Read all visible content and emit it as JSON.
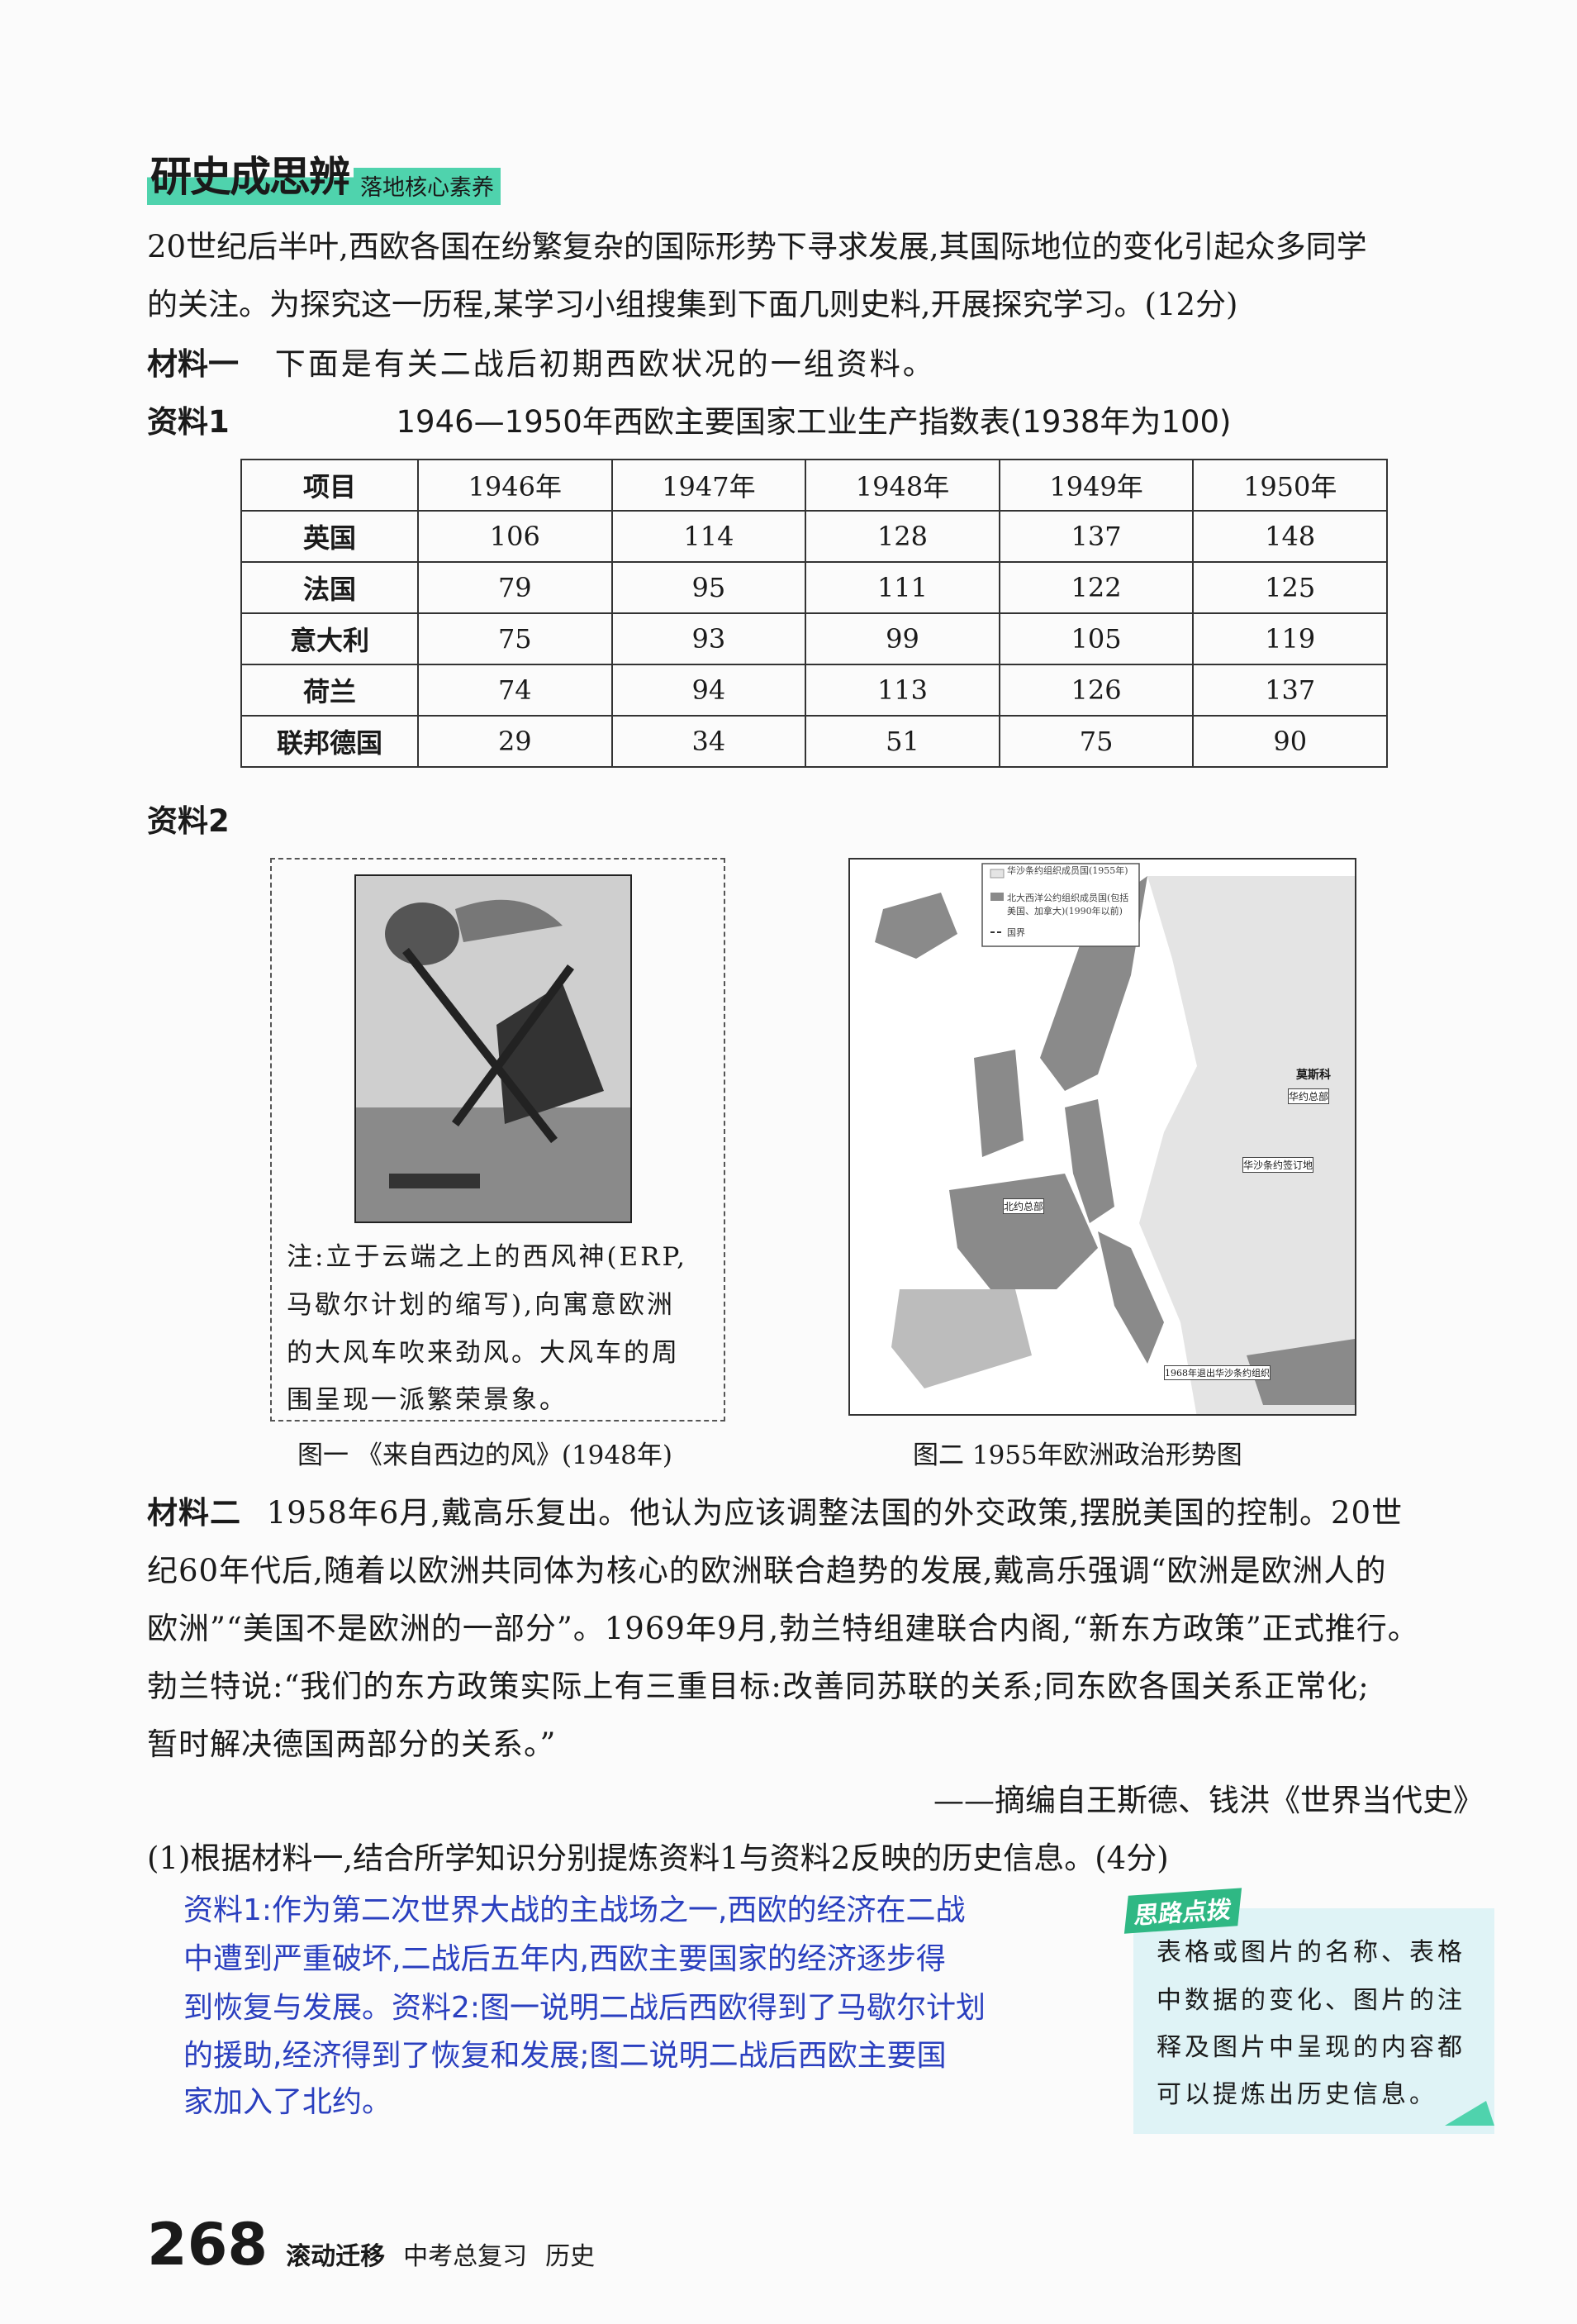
{
  "header": {
    "title": "研史成思辨",
    "subtitle": "落地核心素养"
  },
  "intro": [
    "20世纪后半叶,西欧各国在纷繁复杂的国际形势下寻求发展,其国际地位的变化引起众多同学",
    "的关注。为探究这一历程,某学习小组搜集到下面几则史料,开展探究学习。(12分)"
  ],
  "material1": {
    "label": "材料一",
    "text": "下面是有关二战后初期西欧状况的一组资料。"
  },
  "source1": {
    "label": "资料1",
    "title": "1946—1950年西欧主要国家工业生产指数表(1938年为100)"
  },
  "table": {
    "headers": [
      "项目",
      "1946年",
      "1947年",
      "1948年",
      "1949年",
      "1950年"
    ],
    "rows": [
      [
        "英国",
        "106",
        "114",
        "128",
        "137",
        "148"
      ],
      [
        "法国",
        "79",
        "95",
        "111",
        "122",
        "125"
      ],
      [
        "意大利",
        "75",
        "93",
        "99",
        "105",
        "119"
      ],
      [
        "荷兰",
        "74",
        "94",
        "113",
        "126",
        "137"
      ],
      [
        "联邦德国",
        "29",
        "34",
        "51",
        "75",
        "90"
      ]
    ]
  },
  "source2": {
    "label": "资料2"
  },
  "figure1": {
    "note": [
      "注:立于云端之上的西风神(ERP,",
      "马歇尔计划的缩写),向寓意欧洲",
      "的大风车吹来劲风。大风车的周",
      "围呈现一派繁荣景象。"
    ],
    "caption": "图一 《来自西边的风》(1948年)"
  },
  "figure2": {
    "legend": [
      "华沙条约组织成员国(1955年)",
      "北大西洋公约组织成员国(包括美国、加拿大)(1990年以前)",
      "国界"
    ],
    "labels": [
      "华约总部",
      "华沙条约签订地",
      "北约总部",
      "1968年退出华沙条约组织",
      "莫斯科"
    ],
    "caption": "图二 1955年欧洲政治形势图",
    "colors": {
      "warsaw": "#e4e4e4",
      "nato": "#8a8a8a"
    }
  },
  "material2": {
    "label": "材料二",
    "lines": [
      "1958年6月,戴高乐复出。他认为应该调整法国的外交政策,摆脱美国的控制。20世",
      "纪60年代后,随着以欧洲共同体为核心的欧洲联合趋势的发展,戴高乐强调“欧洲是欧洲人的",
      "欧洲”“美国不是欧洲的一部分”。1969年9月,勃兰特组建联合内阁,“新东方政策”正式推行。",
      "勃兰特说:“我们的东方政策实际上有三重目标:改善同苏联的关系;同东欧各国关系正常化;",
      "暂时解决德国两部分的关系。”"
    ],
    "citation": "——摘编自王斯德、钱洪《世界当代史》"
  },
  "question1": "(1)根据材料一,结合所学知识分别提炼资料1与资料2反映的历史信息。(4分)",
  "answer": [
    "资料1:作为第二次世界大战的主战场之一,西欧的经济在二战",
    "中遭到严重破坏,二战后五年内,西欧主要国家的经济逐步得",
    "到恢复与发展。资料2:图一说明二战后西欧得到了马歇尔计划",
    "的援助,经济得到了恢复和发展;图二说明二战后西欧主要国",
    "家加入了北约。"
  ],
  "tip": {
    "tag": "思路点拨",
    "lines": [
      "表格或图片的名称、表格",
      "中数据的变化、图片的注",
      "释及图片中呈现的内容都",
      "可以提炼出历史信息。"
    ]
  },
  "footer": {
    "page": "268",
    "brand": "滚动迁移",
    "book": "中考总复习",
    "subject": "历史"
  },
  "colors": {
    "accent": "#4fd3ad",
    "answer": "#2a3fbf",
    "tip_bg": "#dff3f6"
  }
}
